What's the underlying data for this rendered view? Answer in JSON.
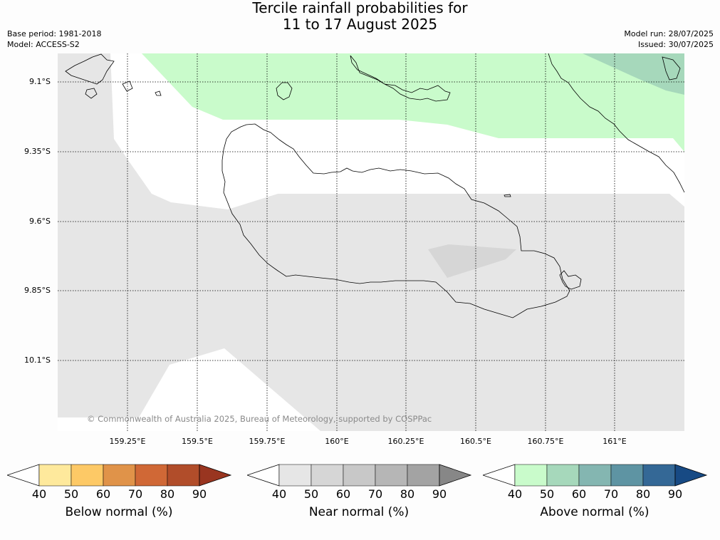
{
  "title": {
    "line1": "Tercile rainfall probabilities for",
    "line2": "11 to 17 August 2025"
  },
  "meta": {
    "base_period": "Base period: 1981-2018",
    "model": "Model: ACCESS-S2",
    "model_run": "Model run: 28/07/2025",
    "issued": "Issued: 30/07/2025"
  },
  "map": {
    "lat_labels": [
      "9.1°S",
      "9.35°S",
      "9.6°S",
      "9.85°S",
      "10.1°S"
    ],
    "lon_labels": [
      "159.25°E",
      "159.5°E",
      "159.75°E",
      "160°E",
      "160.25°E",
      "160.5°E",
      "160.75°E",
      "161°E"
    ],
    "copyright": "© Commonwealth of Australia 2025, Bureau of Meteorology, supported by COSPPac"
  },
  "colorbars": [
    {
      "label": "Below normal (%)",
      "ticks": [
        "40",
        "50",
        "60",
        "70",
        "80",
        "90"
      ],
      "colors": [
        "#ffffff",
        "#fee99c",
        "#fdc966",
        "#e09349",
        "#d06836",
        "#b14d2a",
        "#993520"
      ]
    },
    {
      "label": "Near normal (%)",
      "ticks": [
        "40",
        "50",
        "60",
        "70",
        "80",
        "90"
      ],
      "colors": [
        "#ffffff",
        "#e6e6e6",
        "#d6d6d6",
        "#c8c8c8",
        "#b6b6b6",
        "#a3a3a3",
        "#878787"
      ]
    },
    {
      "label": "Above normal (%)",
      "ticks": [
        "40",
        "50",
        "60",
        "70",
        "80",
        "90"
      ],
      "colors": [
        "#ffffff",
        "#c9fbcb",
        "#a6d8bb",
        "#84b6b1",
        "#5e94a3",
        "#346896",
        "#174a84"
      ]
    }
  ]
}
